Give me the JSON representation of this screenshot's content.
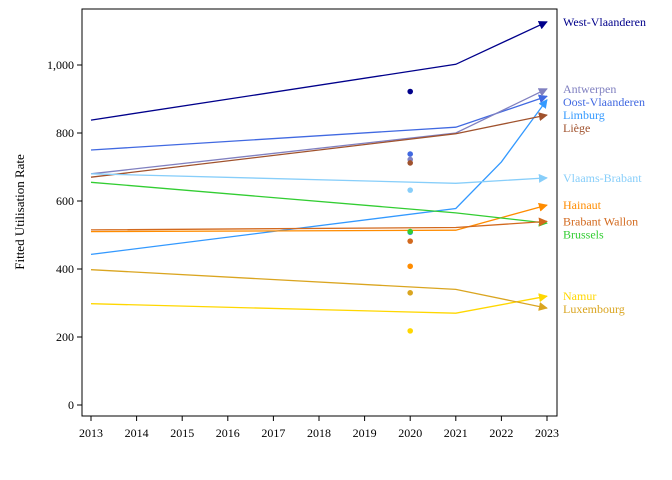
{
  "chart_data": {
    "type": "line",
    "title": "",
    "xlabel": "",
    "ylabel": "Fitted Utilisation Rate",
    "xlim": [
      2012.75,
      2023.25
    ],
    "ylim": [
      -30,
      1165
    ],
    "x_ticks": [
      "2013",
      "2014",
      "2015",
      "2016",
      "2017",
      "2018",
      "2019",
      "2020",
      "2021",
      "2022",
      "2023"
    ],
    "y_ticks": [
      0,
      200,
      400,
      600,
      800,
      1000
    ],
    "y_tick_labels": [
      "0",
      "200",
      "400",
      "600",
      "800",
      "1,000"
    ],
    "grid": false,
    "legend": "right, labels at line ends",
    "series": [
      {
        "name": "West-Vlaanderen",
        "color": "#00008b",
        "x": [
          2013,
          2021,
          2023
        ],
        "y": [
          838,
          1002,
          1127
        ],
        "point_2020": 922
      },
      {
        "name": "Oost-Vlaanderen",
        "color": "#4169e1",
        "x": [
          2013,
          2021,
          2023
        ],
        "y": [
          750,
          817,
          908
        ],
        "point_2020": 738
      },
      {
        "name": "Antwerpen",
        "color": "#8080c0",
        "x": [
          2013,
          2021,
          2023
        ],
        "y": [
          680,
          800,
          930
        ],
        "point_2020": 722
      },
      {
        "name": "Limburg",
        "color": "#3399ff",
        "x": [
          2013,
          2021,
          2022,
          2023
        ],
        "y": [
          443,
          578,
          715,
          898
        ],
        "point_2020": 508
      },
      {
        "name": "Liège",
        "color": "#a0522d",
        "x": [
          2013,
          2021,
          2023
        ],
        "y": [
          670,
          798,
          853
        ],
        "point_2020": 712
      },
      {
        "name": "Vlaams-Brabant",
        "color": "#87cefa",
        "x": [
          2013,
          2021,
          2023
        ],
        "y": [
          680,
          652,
          668
        ],
        "point_2020": 632
      },
      {
        "name": "Hainaut",
        "color": "#ff8c00",
        "x": [
          2013,
          2021,
          2023
        ],
        "y": [
          510,
          514,
          588
        ],
        "point_2020": 408
      },
      {
        "name": "Brussels",
        "color": "#32cd32",
        "x": [
          2013,
          2021,
          2023
        ],
        "y": [
          655,
          565,
          535
        ],
        "point_2020": 510
      },
      {
        "name": "Brabant Wallon",
        "color": "#d2691e",
        "x": [
          2013,
          2021,
          2023
        ],
        "y": [
          515,
          522,
          540
        ],
        "point_2020": 482
      },
      {
        "name": "Namur",
        "color": "#ffd700",
        "x": [
          2013,
          2021,
          2023
        ],
        "y": [
          298,
          270,
          320
        ],
        "point_2020": 218
      },
      {
        "name": "Luxembourg",
        "color": "#daa520",
        "x": [
          2013,
          2021,
          2023
        ],
        "y": [
          398,
          340,
          285
        ],
        "point_2020": 330
      }
    ]
  }
}
